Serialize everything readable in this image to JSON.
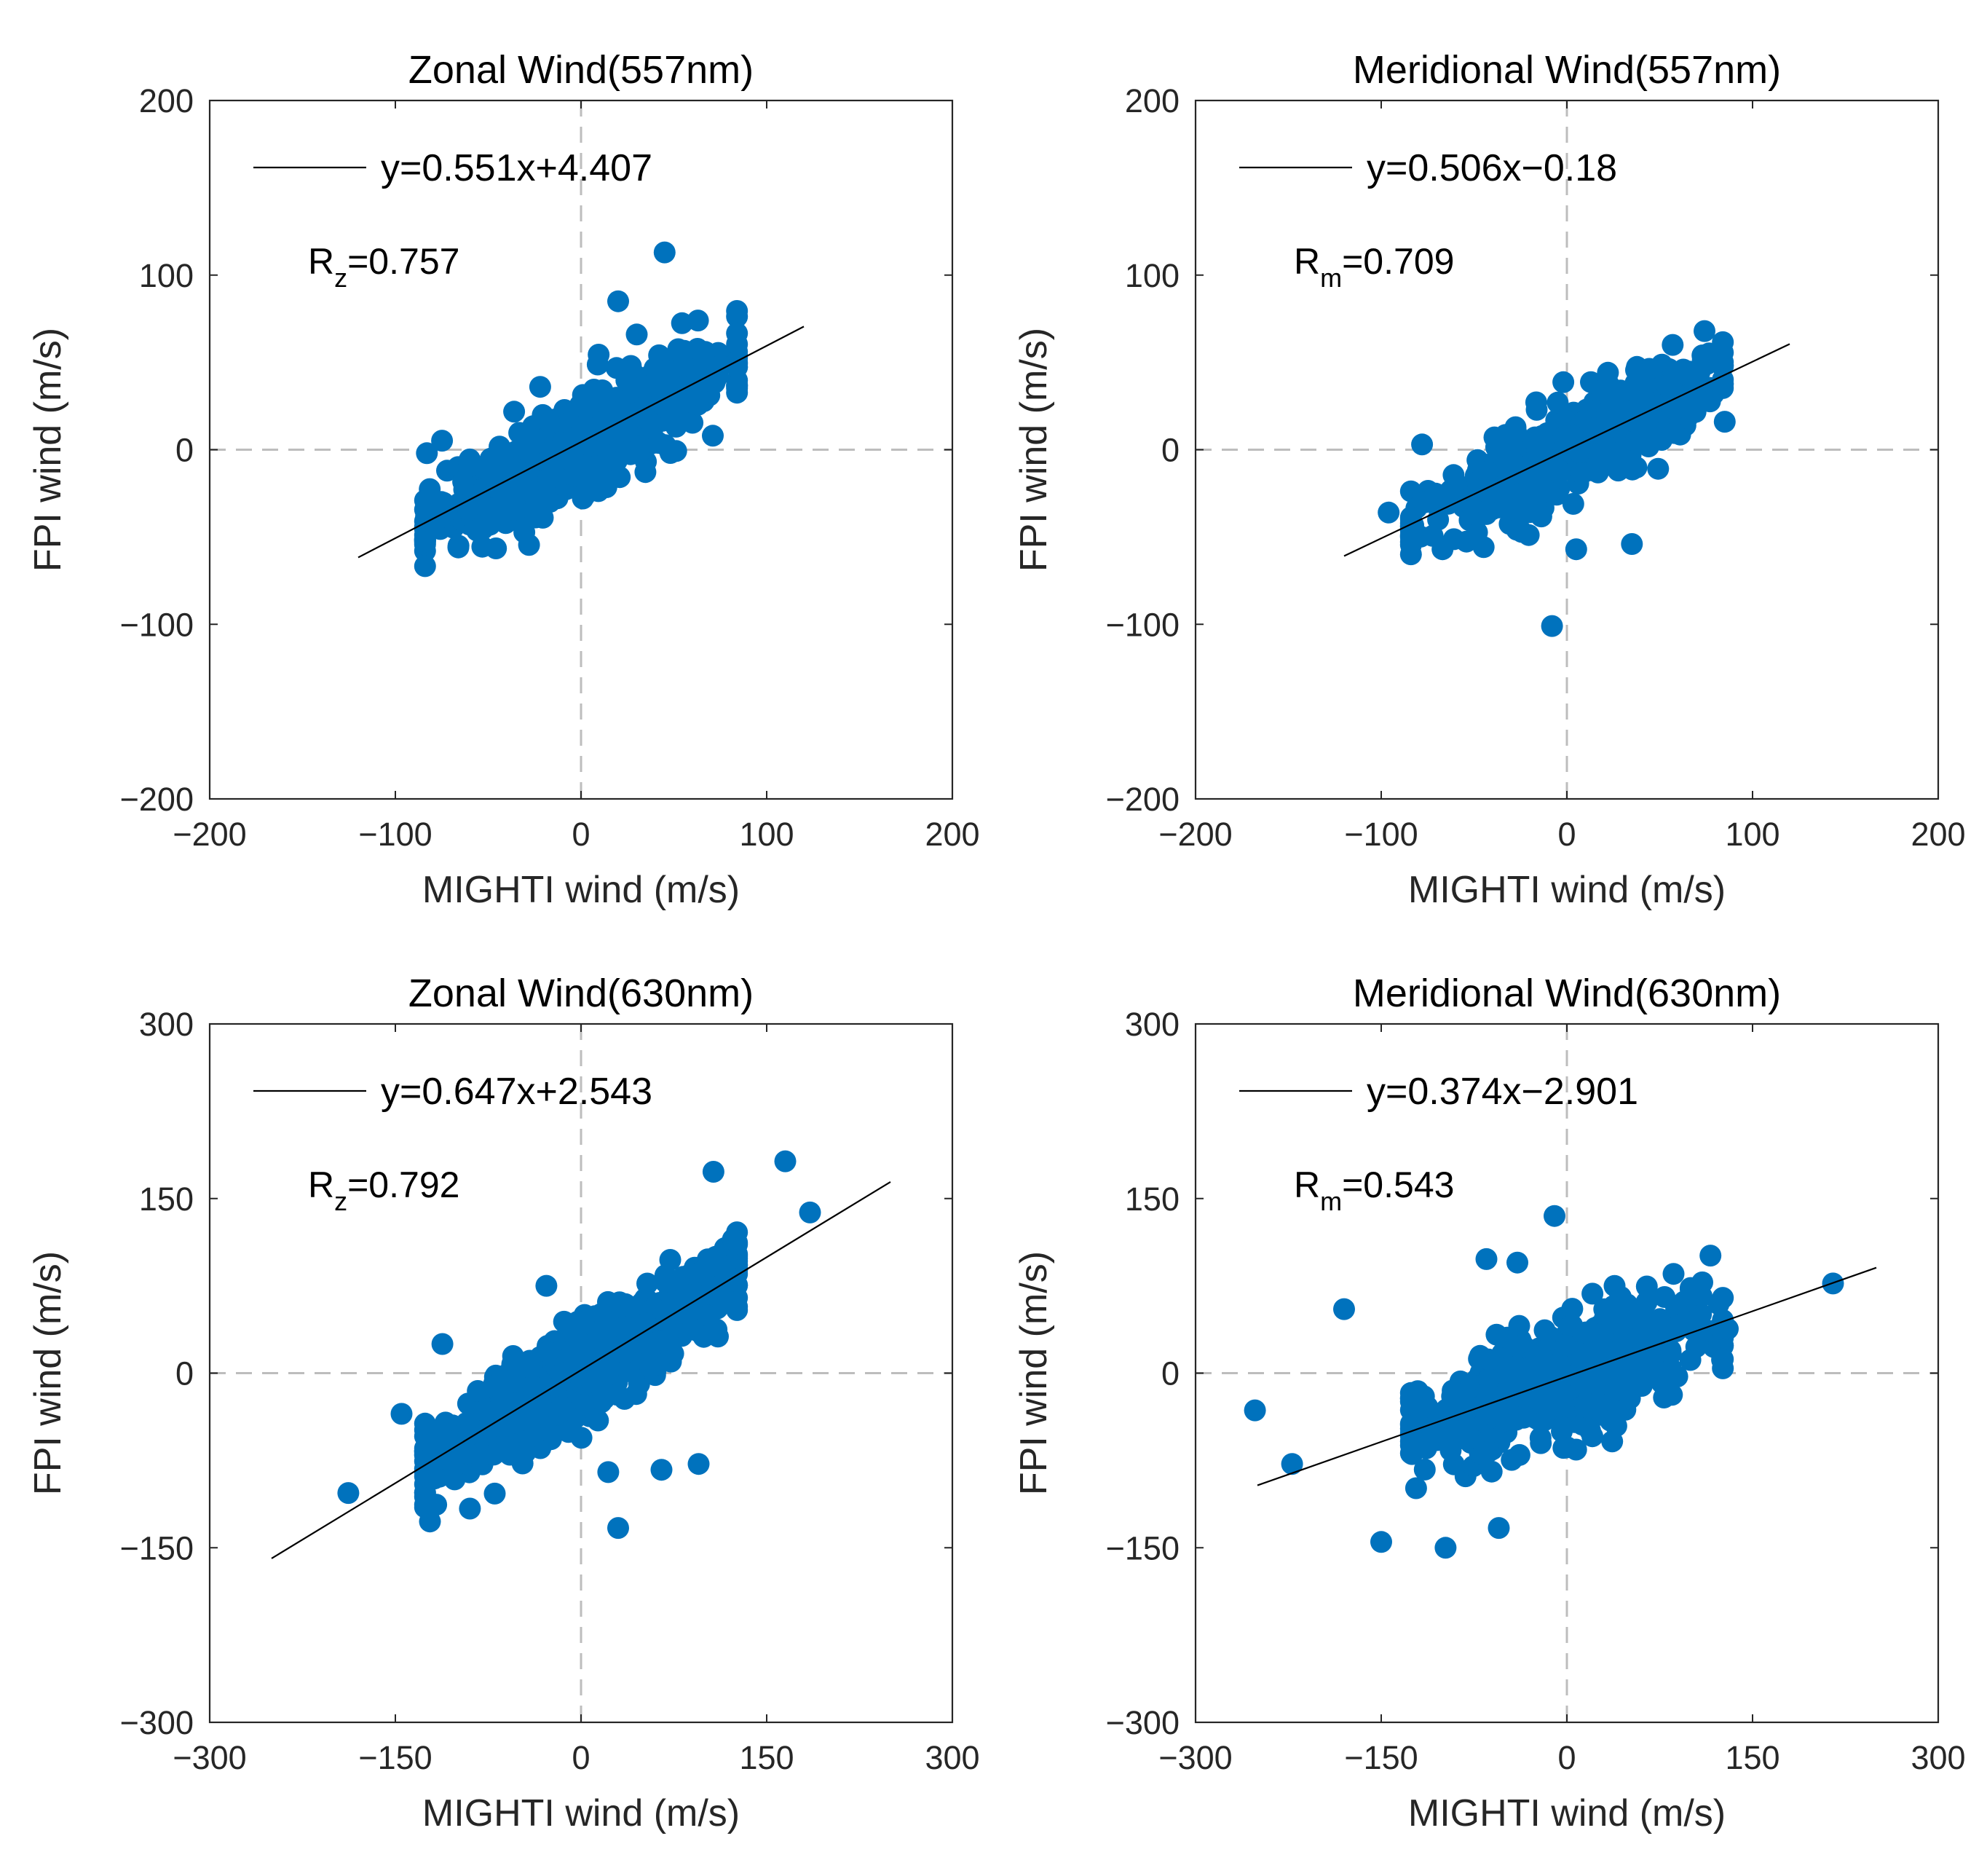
{
  "figure": {
    "colors": {
      "point": "#0072BD",
      "fit_line": "#000000",
      "zero_line": "#BDBDBD",
      "axis": "#262626",
      "background": "#FFFFFF"
    }
  },
  "chart_data": [
    {
      "type": "scatter",
      "title": "Zonal Wind(557nm)",
      "xlabel": "MIGHTI wind (m/s)",
      "ylabel": "FPI wind (m/s)",
      "xlim": [
        -200,
        200
      ],
      "ylim": [
        -200,
        200
      ],
      "xticks": [
        -200,
        -100,
        0,
        100,
        200
      ],
      "yticks": [
        -200,
        -100,
        0,
        100,
        200
      ],
      "xtick_labels": [
        "−200",
        "−100",
        "0",
        "100",
        "200"
      ],
      "ytick_labels": [
        "−200",
        "−100",
        "0",
        "100",
        "200"
      ],
      "fit": {
        "slope": 0.551,
        "intercept": 4.407,
        "x_range": [
          -120,
          120
        ],
        "label": "y=0.551x+4.407"
      },
      "r": {
        "letter": "R",
        "sub": "z",
        "value": "=0.757"
      },
      "n_points": 520,
      "spread": 0.47,
      "outliers": [
        {
          "x": 45,
          "y": 113
        },
        {
          "x": 20,
          "y": 85
        },
        {
          "x": -83,
          "y": -2
        },
        {
          "x": -66,
          "y": -55
        },
        {
          "x": 63,
          "y": 74
        },
        {
          "x": 30,
          "y": 66
        },
        {
          "x": 71,
          "y": 8
        },
        {
          "x": -22,
          "y": 36
        },
        {
          "x": 75,
          "y": 48
        }
      ],
      "seed": 11
    },
    {
      "type": "scatter",
      "title": "Meridional Wind(557nm)",
      "xlabel": "MIGHTI wind (m/s)",
      "ylabel": "FPI wind (m/s)",
      "xlim": [
        -200,
        200
      ],
      "ylim": [
        -200,
        200
      ],
      "xticks": [
        -200,
        -100,
        0,
        100,
        200
      ],
      "yticks": [
        -200,
        -100,
        0,
        100,
        200
      ],
      "xtick_labels": [
        "−200",
        "−100",
        "0",
        "100",
        "200"
      ],
      "ytick_labels": [
        "−200",
        "−100",
        "0",
        "100",
        "200"
      ],
      "fit": {
        "slope": 0.506,
        "intercept": -0.18,
        "x_range": [
          -120,
          120
        ],
        "label": "y=0.506x−0.18"
      },
      "r": {
        "letter": "R",
        "sub": "m",
        "value": "=0.709"
      },
      "n_points": 480,
      "spread": 0.42,
      "outliers": [
        {
          "x": -8,
          "y": -101
        },
        {
          "x": 35,
          "y": -54
        },
        {
          "x": 85,
          "y": 16
        },
        {
          "x": -96,
          "y": -36
        },
        {
          "x": 73,
          "y": 54
        },
        {
          "x": 57,
          "y": 60
        },
        {
          "x": -67,
          "y": -57
        },
        {
          "x": 5,
          "y": -57
        },
        {
          "x": -78,
          "y": 3
        }
      ],
      "seed": 23
    },
    {
      "type": "scatter",
      "title": "Zonal Wind(630nm)",
      "xlabel": "MIGHTI wind (m/s)",
      "ylabel": "FPI wind (m/s)",
      "xlim": [
        -300,
        300
      ],
      "ylim": [
        -300,
        300
      ],
      "xticks": [
        -300,
        -150,
        0,
        150,
        300
      ],
      "yticks": [
        -300,
        -150,
        0,
        150,
        300
      ],
      "xtick_labels": [
        "−300",
        "−150",
        "0",
        "150",
        "300"
      ],
      "ytick_labels": [
        "−300",
        "−150",
        "0",
        "150",
        "300"
      ],
      "fit": {
        "slope": 0.647,
        "intercept": 2.543,
        "x_range": [
          -250,
          250
        ],
        "label": "y=0.647x+2.543"
      },
      "r": {
        "letter": "R",
        "sub": "z",
        "value": "=0.792"
      },
      "n_points": 700,
      "spread": 0.45,
      "outliers": [
        {
          "x": -188,
          "y": -103
        },
        {
          "x": -145,
          "y": -35
        },
        {
          "x": -117,
          "y": -113
        },
        {
          "x": -112,
          "y": 25
        },
        {
          "x": 30,
          "y": -133
        },
        {
          "x": 165,
          "y": 182
        },
        {
          "x": 107,
          "y": 173
        },
        {
          "x": 185,
          "y": 138
        },
        {
          "x": -28,
          "y": 75
        },
        {
          "x": 95,
          "y": -78
        },
        {
          "x": 65,
          "y": -83
        },
        {
          "x": 22,
          "y": -85
        }
      ],
      "seed": 37
    },
    {
      "type": "scatter",
      "title": "Meridional Wind(630nm)",
      "xlabel": "MIGHTI wind (m/s)",
      "ylabel": "FPI wind (m/s)",
      "xlim": [
        -300,
        300
      ],
      "ylim": [
        -300,
        300
      ],
      "xticks": [
        -300,
        -150,
        0,
        150,
        300
      ],
      "yticks": [
        -300,
        -150,
        0,
        150,
        300
      ],
      "xtick_labels": [
        "−300",
        "−150",
        "0",
        "150",
        "300"
      ],
      "ytick_labels": [
        "−300",
        "−150",
        "0",
        "150",
        "300"
      ],
      "fit": {
        "slope": 0.374,
        "intercept": -2.901,
        "x_range": [
          -250,
          250
        ],
        "label": "y=0.374x−2.901"
      },
      "r": {
        "letter": "R",
        "sub": "m",
        "value": "=0.543"
      },
      "n_points": 650,
      "spread": 0.5,
      "outliers": [
        {
          "x": -252,
          "y": -32
        },
        {
          "x": -222,
          "y": -78
        },
        {
          "x": 215,
          "y": 77
        },
        {
          "x": 130,
          "y": 38
        },
        {
          "x": -10,
          "y": 135
        },
        {
          "x": -65,
          "y": 98
        },
        {
          "x": -98,
          "y": -150
        },
        {
          "x": -150,
          "y": -145
        },
        {
          "x": -180,
          "y": 55
        },
        {
          "x": -55,
          "y": -133
        },
        {
          "x": 100,
          "y": 72
        },
        {
          "x": -40,
          "y": 95
        }
      ],
      "seed": 53
    }
  ]
}
